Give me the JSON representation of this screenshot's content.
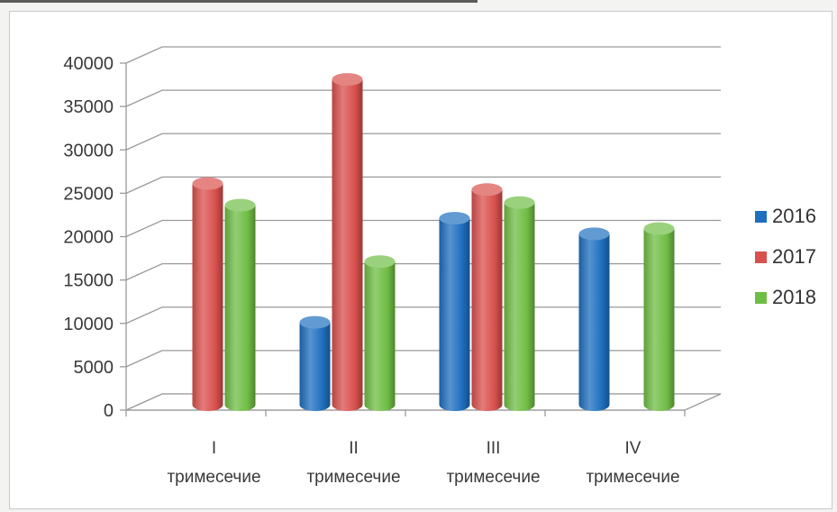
{
  "chart_data": {
    "type": "bar",
    "categories": [
      [
        "I",
        "тримесечие"
      ],
      [
        "II",
        "тримесечие"
      ],
      [
        "III",
        "тримесечие"
      ],
      [
        "IV",
        "тримесечие"
      ]
    ],
    "series": [
      {
        "name": "2016",
        "color": "#1f6fbf",
        "values": [
          null,
          9500,
          21500,
          19700
        ]
      },
      {
        "name": "2017",
        "color": "#d9504d",
        "values": [
          25500,
          37500,
          24800,
          null
        ]
      },
      {
        "name": "2018",
        "color": "#6fbd44",
        "values": [
          23000,
          16500,
          23300,
          20300
        ]
      }
    ],
    "yticks": [
      0,
      5000,
      10000,
      15000,
      20000,
      25000,
      30000,
      35000,
      40000
    ],
    "ylim": [
      0,
      40000
    ],
    "grid": true,
    "legend": "right",
    "three_d": true
  }
}
